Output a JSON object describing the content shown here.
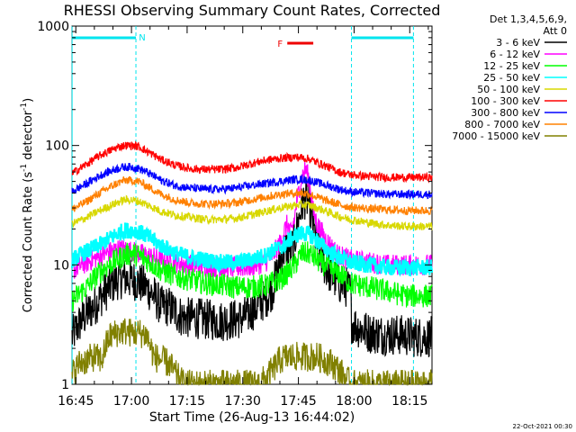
{
  "chart_data": {
    "type": "line",
    "title": "RHESSI Observing Summary Count Rates, Corrected",
    "xlabel": "Start Time (26-Aug-13 16:44:02)",
    "ylabel_main": "Corrected Count Rate (s",
    "ylabel_sup1": "-1",
    "ylabel_mid": " detector",
    "ylabel_sup2": "-1",
    "ylabel_end": ")",
    "y_scale": "log",
    "ylim": [
      1,
      1000
    ],
    "xlim_minutes": [
      -0.03,
      97
    ],
    "x_ticks": [
      {
        "min": 1,
        "label": "16:45"
      },
      {
        "min": 16,
        "label": "17:00"
      },
      {
        "min": 31,
        "label": "17:15"
      },
      {
        "min": 46,
        "label": "17:30"
      },
      {
        "min": 61,
        "label": "17:45"
      },
      {
        "min": 76,
        "label": "18:00"
      },
      {
        "min": 91,
        "label": "18:15"
      }
    ],
    "y_ticks": [
      {
        "value": 1,
        "label": "1"
      },
      {
        "value": 10,
        "label": "10"
      },
      {
        "value": 100,
        "label": "100"
      },
      {
        "value": 1000,
        "label": "1000"
      }
    ],
    "legend": {
      "placement": "right",
      "header1": "Det 1,3,4,5,6,9,",
      "header2": "Att 0"
    },
    "annotations": {
      "night_label": "N",
      "flare_label": "F",
      "night_segments": [
        [
          0,
          17.2
        ],
        [
          75.3,
          92
        ]
      ],
      "flare_segment": [
        58,
        65
      ],
      "dashed_marker_minutes": [
        0,
        17.2,
        75.3,
        92
      ]
    },
    "series": [
      {
        "name": "3 - 6 keV",
        "color": "#000000",
        "x": [
          0,
          3,
          6,
          8,
          10,
          12,
          14,
          16,
          17,
          20,
          22,
          24,
          26,
          28,
          30,
          33,
          36,
          40,
          44,
          46,
          48,
          50,
          52,
          54,
          55,
          56,
          57,
          58,
          59,
          60,
          61,
          62,
          63,
          64,
          65,
          66,
          67,
          68,
          70,
          72,
          74,
          75,
          75.3,
          77,
          80,
          84,
          88,
          92,
          95,
          97
        ],
        "y": [
          2.5,
          3.6,
          4.5,
          5.5,
          6.5,
          7.5,
          7.8,
          7.5,
          7.4,
          6.5,
          5.5,
          4.5,
          4.5,
          4.0,
          3.6,
          3.6,
          3.5,
          3.4,
          3.5,
          3.6,
          4.0,
          4.5,
          5.2,
          6.2,
          8.0,
          11,
          13,
          14,
          13.5,
          16,
          23,
          32,
          37,
          31,
          20,
          15,
          12,
          10,
          8,
          7,
          6.5,
          6,
          3.3,
          3,
          2.7,
          2.6,
          2.6,
          2.5,
          2.5,
          2.5
        ]
      },
      {
        "name": "6 - 12 keV",
        "color": "#ff00ff",
        "x": [
          0,
          4,
          8,
          12,
          14,
          16,
          18,
          20,
          24,
          28,
          32,
          36,
          40,
          44,
          48,
          52,
          54,
          56,
          58,
          59,
          60,
          61,
          62,
          63,
          64,
          65,
          66,
          68,
          70,
          72,
          75,
          80,
          85,
          90,
          97
        ],
        "y": [
          9,
          10.5,
          12,
          13.5,
          13.5,
          13,
          12.5,
          12,
          11,
          10.5,
          10,
          9.8,
          9.5,
          9.5,
          9.7,
          10.5,
          12,
          15,
          22,
          18,
          25,
          40,
          55,
          65,
          48,
          28,
          22,
          17,
          14,
          12,
          11,
          10.5,
          10,
          10,
          10
        ]
      },
      {
        "name": "12 - 25 keV",
        "color": "#00ff00",
        "x": [
          0,
          4,
          8,
          12,
          14,
          16,
          18,
          20,
          24,
          28,
          32,
          36,
          40,
          44,
          48,
          52,
          56,
          58,
          60,
          62,
          64,
          66,
          68,
          70,
          72,
          75,
          80,
          85,
          90,
          97
        ],
        "y": [
          5,
          6.5,
          9,
          11,
          12,
          12.5,
          12,
          11,
          9,
          8,
          7.5,
          7,
          6.8,
          6.5,
          6.5,
          6.7,
          7.5,
          8.5,
          10,
          12.5,
          12.5,
          11,
          10,
          9,
          8.5,
          7,
          6.5,
          6,
          5.5,
          5.5
        ]
      },
      {
        "name": "25 - 50 keV",
        "color": "#00ffff",
        "x": [
          0,
          4,
          8,
          12,
          14,
          16,
          18,
          20,
          24,
          28,
          32,
          36,
          40,
          44,
          48,
          52,
          56,
          58,
          60,
          62,
          64,
          66,
          68,
          70,
          72,
          75,
          80,
          85,
          90,
          97
        ],
        "y": [
          11,
          13,
          15,
          18,
          19.5,
          19.5,
          19,
          17.5,
          14.5,
          12.5,
          11.5,
          11,
          10.5,
          10.5,
          11,
          12,
          14,
          15.5,
          17.5,
          18.5,
          18,
          16,
          14,
          12.5,
          11.5,
          10.5,
          10,
          9.5,
          9.5,
          9.5
        ]
      },
      {
        "name": "50 - 100 keV",
        "color": "#d8d800",
        "x": [
          0,
          4,
          8,
          12,
          14,
          16,
          18,
          20,
          24,
          28,
          32,
          36,
          40,
          44,
          48,
          52,
          56,
          60,
          62,
          64,
          66,
          68,
          70,
          72,
          75,
          80,
          85,
          90,
          97
        ],
        "y": [
          22,
          25,
          29,
          33,
          35,
          35,
          34,
          32,
          28,
          26,
          25,
          24,
          24,
          24.5,
          26,
          28,
          30,
          31.5,
          32,
          31.5,
          30,
          28.5,
          27,
          25.5,
          24,
          22.5,
          21.5,
          21,
          21
        ]
      },
      {
        "name": "100 - 300 keV",
        "color": "#ff0000",
        "x": [
          0,
          4,
          8,
          12,
          14,
          16,
          18,
          20,
          24,
          28,
          32,
          36,
          40,
          44,
          48,
          52,
          56,
          60,
          62,
          64,
          66,
          68,
          70,
          72,
          75,
          80,
          85,
          90,
          97
        ],
        "y": [
          58,
          70,
          84,
          96,
          100,
          100,
          98,
          90,
          76,
          68,
          64,
          63,
          63,
          65,
          70,
          75,
          78,
          80,
          79,
          77,
          72,
          68,
          64,
          60,
          57,
          55,
          54,
          54,
          54
        ]
      },
      {
        "name": "300 - 800 keV",
        "color": "#0000ff",
        "x": [
          0,
          4,
          8,
          12,
          14,
          16,
          18,
          20,
          24,
          28,
          32,
          36,
          40,
          44,
          48,
          52,
          56,
          60,
          62,
          64,
          66,
          68,
          70,
          72,
          75,
          80,
          85,
          90,
          97
        ],
        "y": [
          41,
          48,
          57,
          64,
          66,
          66,
          64,
          60,
          51,
          46,
          44,
          43,
          43,
          44,
          46,
          48,
          50,
          52,
          52,
          51,
          49,
          47,
          45,
          43,
          41,
          40,
          39,
          39,
          39
        ]
      },
      {
        "name": "800 - 7000 keV",
        "color": "#ff8000",
        "x": [
          0,
          4,
          8,
          12,
          14,
          16,
          18,
          20,
          24,
          28,
          32,
          36,
          40,
          44,
          48,
          52,
          56,
          60,
          62,
          64,
          66,
          68,
          70,
          72,
          75,
          80,
          85,
          90,
          97
        ],
        "y": [
          29,
          34,
          41,
          48,
          51,
          51,
          50,
          46,
          39,
          35,
          33,
          32.5,
          32.5,
          33,
          35,
          37,
          39,
          40,
          40,
          39,
          37,
          35,
          33.5,
          32,
          30.5,
          29.5,
          29,
          28.5,
          28.5
        ]
      },
      {
        "name": "7000 - 15000 keV",
        "color": "#808000",
        "x": [
          0,
          2,
          4,
          6,
          8,
          10,
          12,
          14,
          16,
          18,
          20,
          22,
          24,
          26,
          28,
          30,
          35,
          40,
          45,
          50,
          52,
          54,
          56,
          58,
          60,
          62,
          64,
          66,
          68,
          70,
          72,
          75,
          80,
          90,
          97
        ],
        "y": [
          1.2,
          1.5,
          1.6,
          1.7,
          1.6,
          2.5,
          2.7,
          2.8,
          2.7,
          2.7,
          2.6,
          1.7,
          1.6,
          1.5,
          1.2,
          1.0,
          1.0,
          1.0,
          1.0,
          1.0,
          1.1,
          1.3,
          1.6,
          1.7,
          1.7,
          1.7,
          1.7,
          1.7,
          1.6,
          1.5,
          1.3,
          1.0,
          1.0,
          1.0,
          1.0
        ]
      }
    ]
  },
  "footer": {
    "date_stamp": "22-Oct-2021 00:30"
  }
}
